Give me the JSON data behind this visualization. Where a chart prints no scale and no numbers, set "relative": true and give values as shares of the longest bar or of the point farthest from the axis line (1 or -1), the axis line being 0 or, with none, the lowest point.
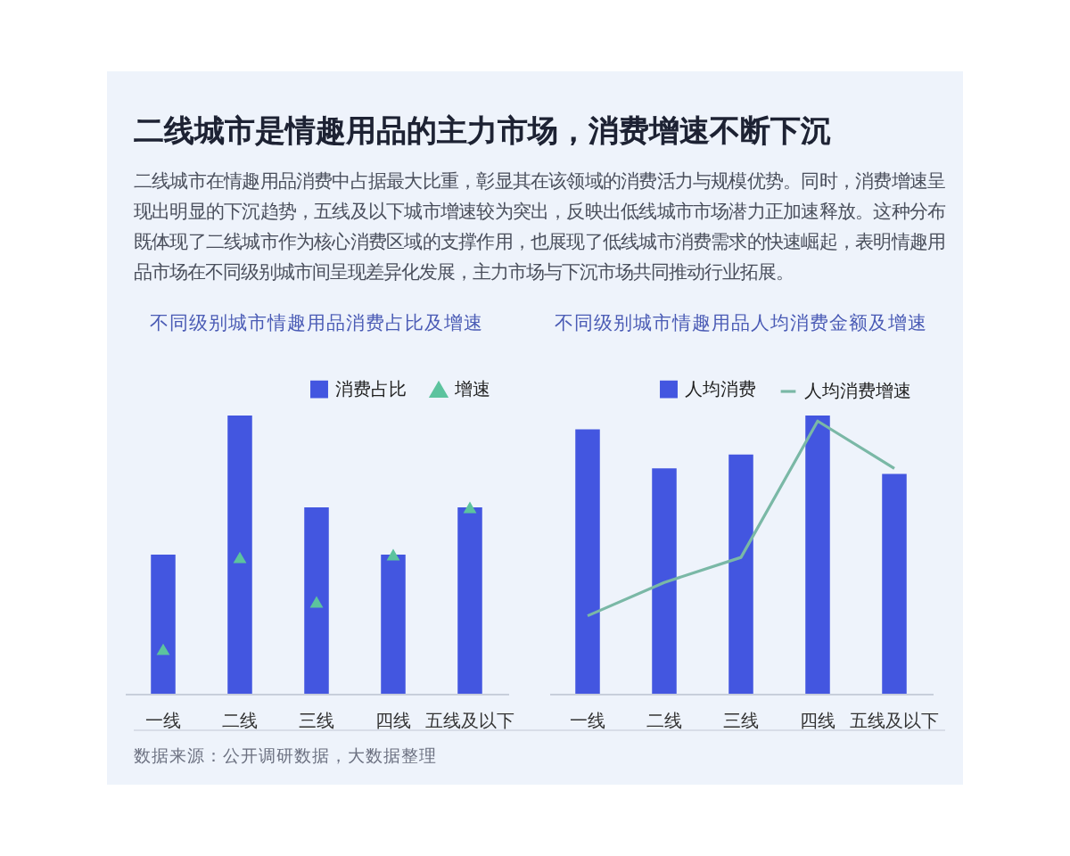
{
  "chart_data": [
    {
      "type": "other",
      "title": "二线城市是情趣用品的主力市场，消费增速不断下沉",
      "subtitle": "二线城市在情趣用品消费中占据最大比重，彰显其在该领域的消费活力与规模优势。同时，消费增速呈现出明显的下沉趋势，五线及以下城市增速较为突出，反映出低线城市市场潜力正加速释放。这种分布既体现了二线城市作为核心消费区域的支撑作用，也展现了低线城市消费需求的快速崛起，表明情趣用品市场在不同级别城市间呈现差异化发展，主力市场与下沉市场共同推动行业拓展。"
    },
    {
      "type": "bar",
      "title": "不同级别城市情趣用品消费占比及增速",
      "relative": true,
      "legend": "top right",
      "marker": "triangle",
      "categories": [
        "一线",
        "二线",
        "三线",
        "四线",
        "五线及以下"
      ],
      "series": [
        {
          "name": "消费占比",
          "type": "bar",
          "color": "#4356e0",
          "values": [
            0.5,
            1,
            0.67,
            0.5,
            0.67
          ]
        },
        {
          "name": "增速",
          "type": "scatter",
          "color": "#5cc39e",
          "values": [
            0.16,
            0.49,
            0.33,
            0.5,
            0.67
          ]
        }
      ]
    },
    {
      "type": "bar",
      "title": "不同级别城市情趣用品人均消费金额及增速",
      "relative": true,
      "legend": "top right",
      "categories": [
        "一线",
        "二线",
        "三线",
        "四线",
        "五线及以下"
      ],
      "annotations": [
        "数据来源：公开调研数据，大数据整理"
      ],
      "series": [
        {
          "name": "人均消费",
          "type": "bar",
          "color": "#4356e0",
          "values": [
            0.95,
            0.81,
            0.86,
            1,
            0.79
          ]
        },
        {
          "name": "人均消费增速",
          "type": "line",
          "color": "#7ab8a6",
          "values": [
            0.28,
            0.4,
            0.49,
            0.98,
            0.81
          ]
        }
      ]
    }
  ]
}
